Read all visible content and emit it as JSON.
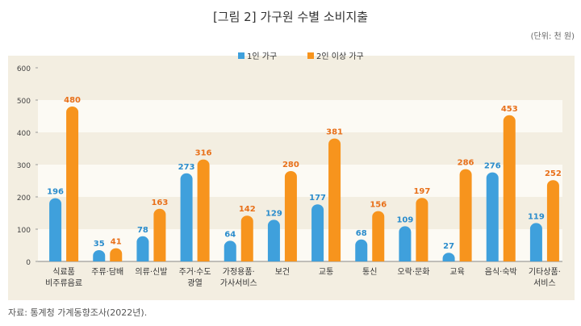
{
  "chart_data": {
    "type": "bar",
    "title": "[그림 2] 가구원 수별 소비지출",
    "unit": "(단위: 천 원)",
    "source": "자료: 통계청 가계동향조사(2022년).",
    "categories": [
      [
        "식료품",
        "비주류음료"
      ],
      [
        "주류·담배"
      ],
      [
        "의류·신발"
      ],
      [
        "주거·수도",
        "광열"
      ],
      [
        "가정용품·",
        "가사서비스"
      ],
      [
        "보건"
      ],
      [
        "교통"
      ],
      [
        "통신"
      ],
      [
        "오락·문화"
      ],
      [
        "교육"
      ],
      [
        "음식·숙박"
      ],
      [
        "기타상품·",
        "서비스"
      ]
    ],
    "series": [
      {
        "name": "1인 가구",
        "color": "#3fa0dc",
        "label_color": "#2a8ccc",
        "values": [
          196,
          35,
          78,
          273,
          64,
          129,
          177,
          68,
          109,
          27,
          276,
          119
        ]
      },
      {
        "name": "2인 이상 가구",
        "color": "#f7941d",
        "label_color": "#e8701a",
        "values": [
          480,
          41,
          163,
          316,
          142,
          280,
          381,
          156,
          197,
          286,
          453,
          252
        ]
      }
    ],
    "ylim": [
      0,
      600
    ],
    "yticks": [
      0,
      100,
      200,
      300,
      400,
      500,
      600
    ],
    "legend": "top-center",
    "grid": "alternating bands"
  }
}
